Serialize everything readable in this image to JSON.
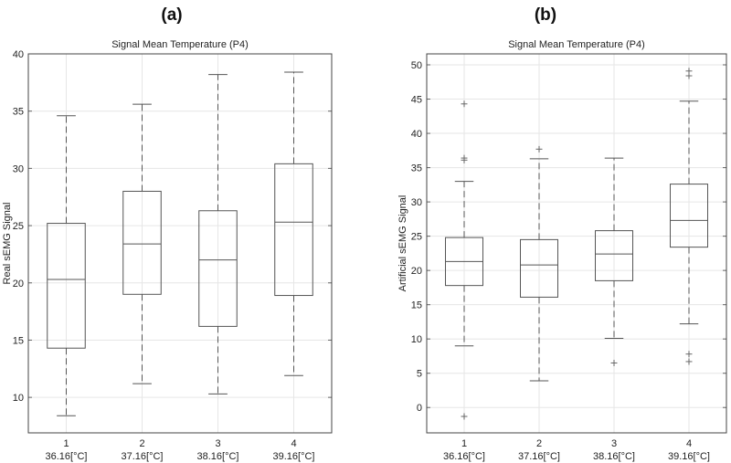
{
  "chart_data": [
    {
      "type": "box",
      "panel_label": "(a)",
      "title": "Signal Mean Temperature (P4)",
      "xlabel": "",
      "ylabel": "Real sEMG Signal",
      "ylim": [
        6.9,
        40
      ],
      "yticks": [
        10,
        15,
        20,
        25,
        30,
        35,
        40
      ],
      "grid": true,
      "categories": [
        "1",
        "2",
        "3",
        "4"
      ],
      "category_sublabels": [
        "36.16[°C]",
        "37.16[°C]",
        "38.16[°C]",
        "39.16[°C]"
      ],
      "boxes": [
        {
          "whisker_low": 8.4,
          "q1": 14.3,
          "median": 20.3,
          "q3": 25.2,
          "whisker_high": 34.6,
          "outliers": []
        },
        {
          "whisker_low": 11.2,
          "q1": 19.0,
          "median": 23.4,
          "q3": 28.0,
          "whisker_high": 35.6,
          "outliers": []
        },
        {
          "whisker_low": 10.3,
          "q1": 16.2,
          "median": 22.0,
          "q3": 26.3,
          "whisker_high": 38.2,
          "outliers": []
        },
        {
          "whisker_low": 11.9,
          "q1": 18.9,
          "median": 25.3,
          "q3": 30.4,
          "whisker_high": 38.4,
          "outliers": []
        }
      ]
    },
    {
      "type": "box",
      "panel_label": "(b)",
      "title": "Signal Mean Temperature (P4)",
      "xlabel": "",
      "ylabel": "Artificial sEMG Signal",
      "ylim": [
        -3.7,
        51.6
      ],
      "yticks": [
        0,
        5,
        10,
        15,
        20,
        25,
        30,
        35,
        40,
        45,
        50
      ],
      "grid": true,
      "categories": [
        "1",
        "2",
        "3",
        "4"
      ],
      "category_sublabels": [
        "36.16[°C]",
        "37.16[°C]",
        "38.16[°C]",
        "39.16[°C]"
      ],
      "boxes": [
        {
          "whisker_low": 9.0,
          "q1": 17.8,
          "median": 21.3,
          "q3": 24.8,
          "whisker_high": 33.0,
          "outliers": [
            36.1,
            36.4,
            44.3,
            -1.3
          ]
        },
        {
          "whisker_low": 3.9,
          "q1": 16.1,
          "median": 20.8,
          "q3": 24.5,
          "whisker_high": 36.3,
          "outliers": [
            37.7
          ]
        },
        {
          "whisker_low": 10.1,
          "q1": 18.5,
          "median": 22.4,
          "q3": 25.8,
          "whisker_high": 36.4,
          "outliers": [
            6.5
          ]
        },
        {
          "whisker_low": 12.2,
          "q1": 23.4,
          "median": 27.3,
          "q3": 32.6,
          "whisker_high": 44.7,
          "outliers": [
            48.4,
            49.1,
            7.8,
            6.7
          ]
        }
      ]
    }
  ]
}
